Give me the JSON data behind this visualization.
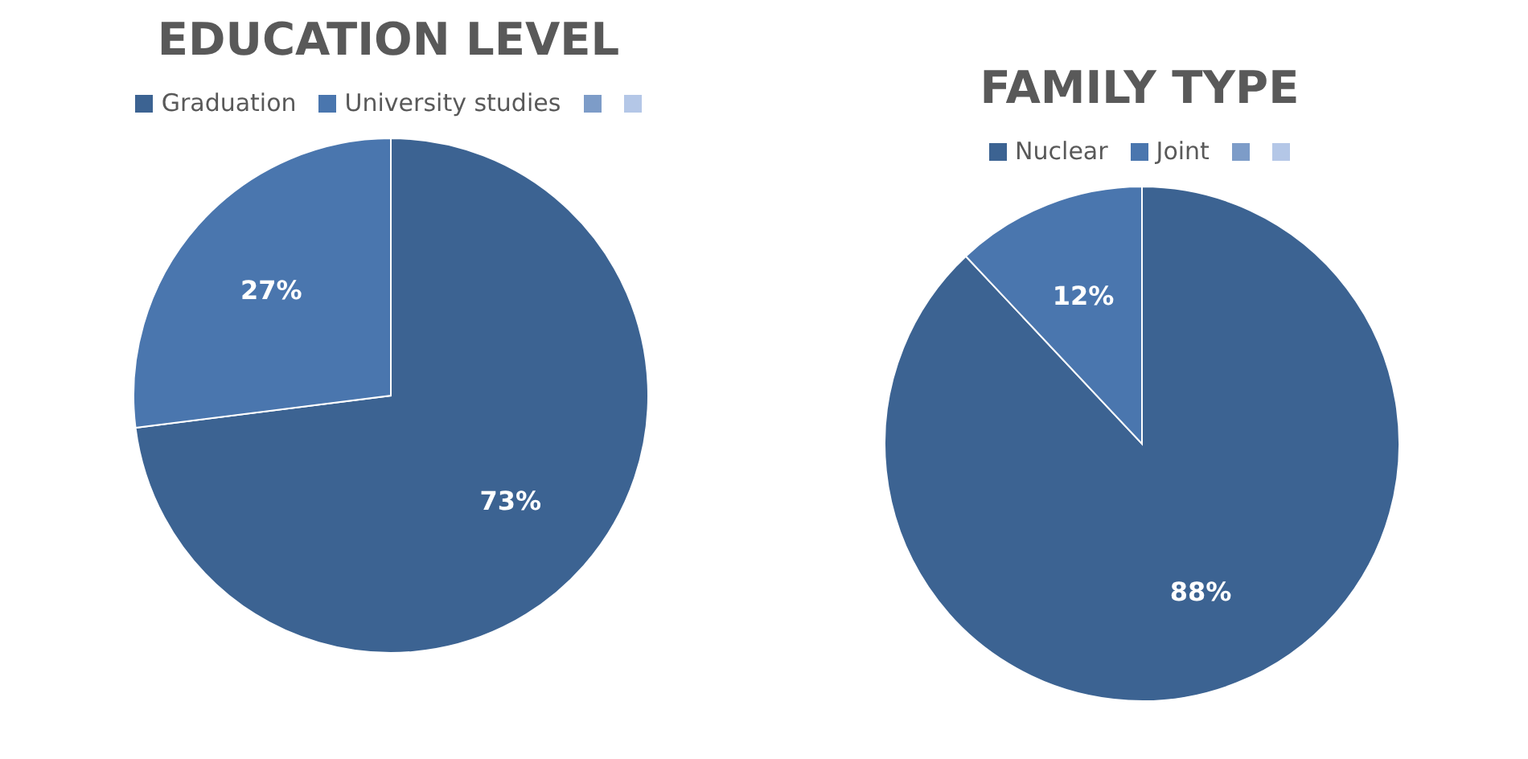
{
  "chart_data": [
    {
      "type": "pie",
      "title": "EDUCATION LEVEL",
      "categories": [
        "Graduation",
        "University studies",
        null,
        null
      ],
      "values": [
        73,
        27,
        0,
        0
      ],
      "colors": [
        "#3c6392",
        "#4a76ae",
        "#7d9cc8",
        "#b4c7e7"
      ],
      "value_labels": [
        "73%",
        "27%",
        null,
        null
      ],
      "legend": "top"
    },
    {
      "type": "pie",
      "title": "FAMILY TYPE",
      "categories": [
        "Nuclear",
        "Joint",
        null,
        null
      ],
      "values": [
        88,
        12,
        0,
        0
      ],
      "colors": [
        "#3c6392",
        "#4a76ae",
        "#7d9cc8",
        "#b4c7e7"
      ],
      "value_labels": [
        "88%",
        "12%",
        null,
        null
      ],
      "legend": "top"
    }
  ]
}
